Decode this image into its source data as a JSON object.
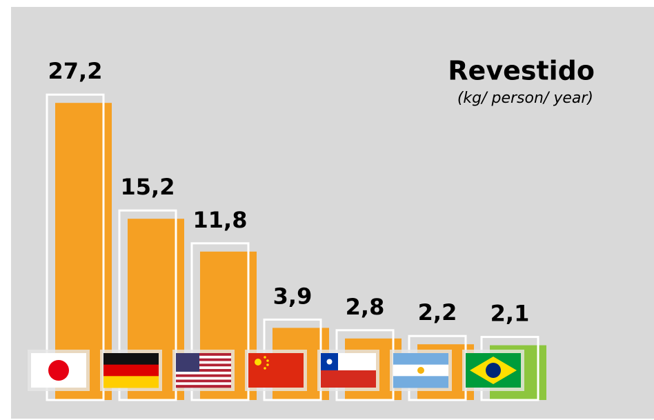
{
  "chart_data": {
    "type": "bar",
    "title": "Revestido",
    "subtitle": "(kg/ person/ year)",
    "categories": [
      null,
      null,
      null,
      null,
      null,
      null,
      null
    ],
    "values": [
      27.2,
      15.2,
      11.8,
      3.9,
      2.8,
      2.2,
      2.1
    ],
    "value_labels": [
      "27,2",
      "15,2",
      "11,8",
      "3,9",
      "2,8",
      "2,2",
      "2,1"
    ],
    "colors": [
      "#f5a023",
      "#f5a023",
      "#f5a023",
      "#f5a023",
      "#f5a023",
      "#f5a023",
      "#8dc63f"
    ]
  }
}
